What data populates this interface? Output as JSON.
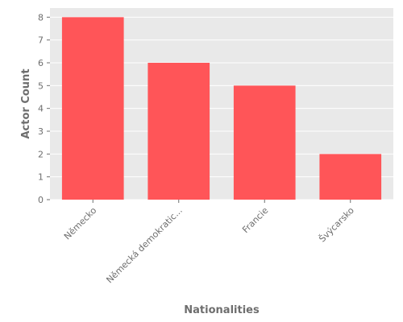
{
  "chart_data": {
    "type": "bar",
    "title": "",
    "xlabel": "Nationalities",
    "ylabel": "Actor Count",
    "categories": [
      "Německo",
      "Německá demokratic...",
      "Francie",
      "Švýcarsko"
    ],
    "values": [
      8,
      6,
      5,
      2
    ],
    "ylim": [
      0,
      8.4
    ],
    "yticks": [
      0,
      1,
      2,
      3,
      4,
      5,
      6,
      7,
      8
    ],
    "grid": true,
    "legend": "none",
    "colors": {
      "bar": "#ff5558",
      "plot_background": "#e9e9e9",
      "grid": "#ffffff",
      "text": "#6e6e6e"
    }
  }
}
